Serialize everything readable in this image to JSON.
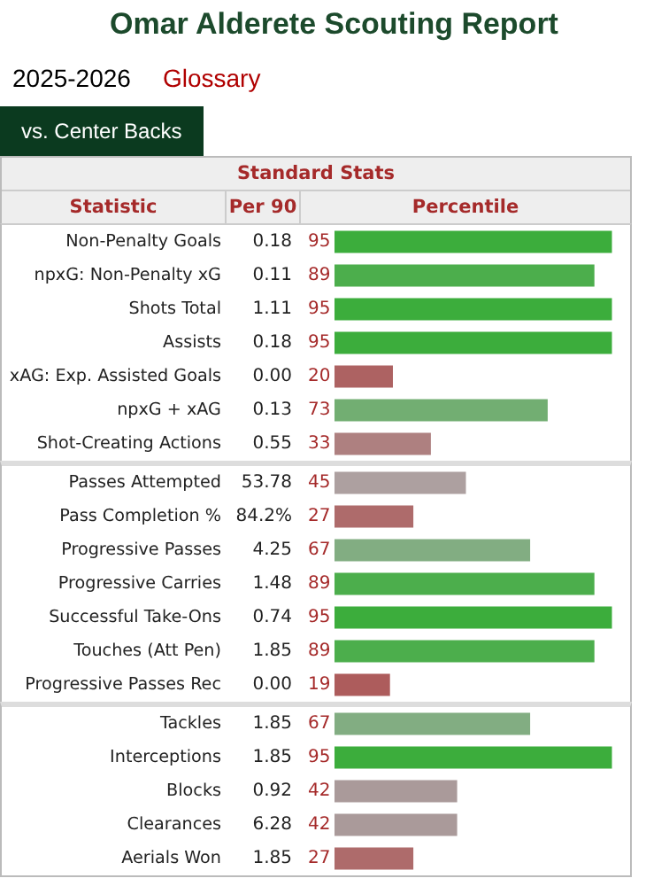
{
  "chart_data": [
    {
      "type": "bar",
      "orientation": "horizontal",
      "title": "Omar Alderete Scouting Report",
      "subtitle": "2025-2026",
      "ylabel": "Statistic",
      "xlabel": "Percentile",
      "xlim": [
        0,
        100
      ],
      "tick_labels": "y",
      "data_labels": true,
      "annotations": [
        "Glossary",
        "vs. Center Backs",
        "Standard Stats",
        "Per 90",
        "0.18",
        "0.11",
        "1.11",
        "0.18",
        "0.00",
        "0.13",
        "0.55"
      ],
      "categories": [
        "Non-Penalty Goals",
        "npxG: Non-Penalty xG",
        "Shots Total",
        "Assists",
        "xAG: Exp. Assisted Goals",
        "npxG + xAG",
        "Shot-Creating Actions"
      ],
      "values": [
        95,
        89,
        95,
        95,
        20,
        73,
        33
      ],
      "colors": [
        "#3cad3c",
        "#4cae4c",
        "#3cad3c",
        "#3cad3c",
        "#ad6262",
        "#72ae72",
        "#ae8080"
      ]
    },
    {
      "type": "bar",
      "orientation": "horizontal",
      "xlim": [
        0,
        100
      ],
      "tick_labels": "y",
      "data_labels": true,
      "annotations": [
        "53.78",
        "84.2%",
        "4.25",
        "1.48",
        "0.74",
        "1.85",
        "0.00"
      ],
      "categories": [
        "Passes Attempted",
        "Pass Completion %",
        "Progressive Passes",
        "Progressive Carries",
        "Successful Take-Ons",
        "Touches (Att Pen)",
        "Progressive Passes Rec"
      ],
      "values": [
        45,
        27,
        67,
        89,
        95,
        89,
        19
      ],
      "colors": [
        "#ada0a0",
        "#ae6b6b",
        "#82ad82",
        "#4cae4c",
        "#3cad3c",
        "#4cae4c",
        "#ad5c5c"
      ]
    },
    {
      "type": "bar",
      "orientation": "horizontal",
      "xlim": [
        0,
        100
      ],
      "tick_labels": "y",
      "data_labels": true,
      "annotations": [
        "1.85",
        "1.85",
        "0.92",
        "6.28",
        "1.85"
      ],
      "categories": [
        "Tackles",
        "Interceptions",
        "Blocks",
        "Clearances",
        "Aerials Won"
      ],
      "values": [
        67,
        95,
        42,
        42,
        27
      ],
      "colors": [
        "#82ad82",
        "#3cad3c",
        "#aa9a9a",
        "#aa9a9a",
        "#ae6b6b"
      ]
    }
  ]
}
